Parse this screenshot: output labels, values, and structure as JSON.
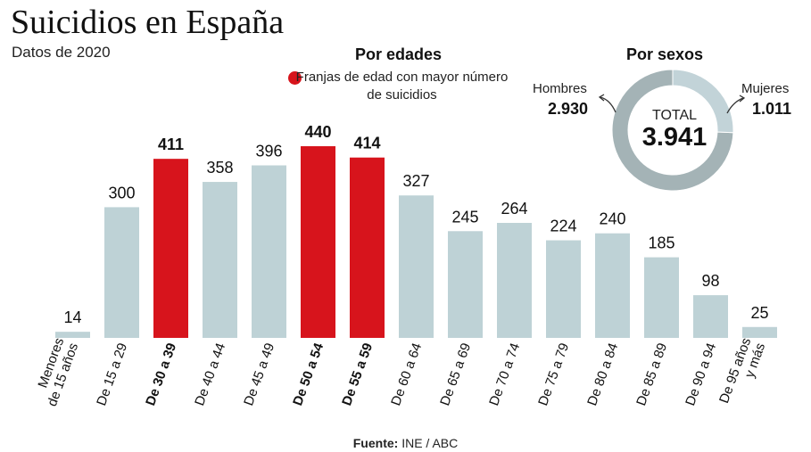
{
  "header": {
    "title": "Suicidios en España",
    "subtitle": "Datos de 2020"
  },
  "legend": {
    "section_title": "Por edades",
    "highlight_label": "Franjas de edad con mayor número de suicidios",
    "highlight_color": "#d7141c"
  },
  "sexes": {
    "section_title": "Por sexos",
    "men_label": "Hombres",
    "men_value": "2.930",
    "women_label": "Mujeres",
    "women_value": "1.011",
    "total_label": "TOTAL",
    "total_value": "3.941",
    "men_color": "#a4b3b6",
    "women_color": "#c2d3d8"
  },
  "source": {
    "prefix": "Fuente:",
    "text": "INE / ABC"
  },
  "colors": {
    "bar": "#bed2d6",
    "highlight": "#d7141c"
  },
  "chart_data": [
    {
      "type": "bar",
      "title": "Por edades",
      "categories": [
        "Menores de 15 años",
        "De 15 a 29",
        "De 30 a 39",
        "De 40 a 44",
        "De 45 a 49",
        "De 50 a 54",
        "De 55 a 59",
        "De 60 a 64",
        "De 65 a 69",
        "De 70 a 74",
        "De 75 a 79",
        "De 80 a 84",
        "De 85 a 89",
        "De 90 a 94",
        "De 95 años y más"
      ],
      "category_lines": [
        [
          "Menores",
          "de 15 años"
        ],
        [
          "De 15 a 29"
        ],
        [
          "De 30 a 39"
        ],
        [
          "De 40 a 44"
        ],
        [
          "De 45 a 49"
        ],
        [
          "De 50 a 54"
        ],
        [
          "De 55 a 59"
        ],
        [
          "De 60 a 64"
        ],
        [
          "De 65 a 69"
        ],
        [
          "De 70 a 74"
        ],
        [
          "De 75 a 79"
        ],
        [
          "De 80 a 84"
        ],
        [
          "De 85 a 89"
        ],
        [
          "De 90 a 94"
        ],
        [
          "De 95 años",
          "y más"
        ]
      ],
      "values": [
        14,
        300,
        411,
        358,
        396,
        440,
        414,
        327,
        245,
        264,
        224,
        240,
        185,
        98,
        25
      ],
      "highlighted": [
        false,
        false,
        true,
        false,
        false,
        true,
        true,
        false,
        false,
        false,
        false,
        false,
        false,
        false,
        false
      ],
      "xlabel": "",
      "ylabel": "",
      "ylim": [
        0,
        440
      ],
      "grid": false,
      "legend": "top-center"
    },
    {
      "type": "pie",
      "title": "Por sexos",
      "labels": [
        "Hombres",
        "Mujeres"
      ],
      "values": [
        2930,
        1011
      ],
      "total": 3941
    }
  ]
}
